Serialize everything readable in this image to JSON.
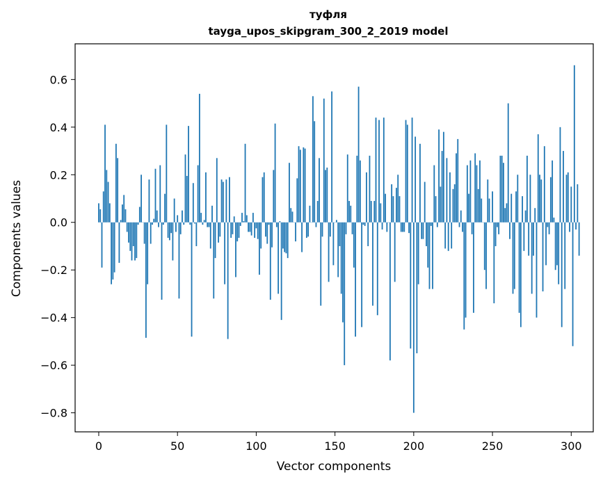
{
  "chart_data": {
    "type": "bar",
    "title_line1": "туфля",
    "title_line2": "tayga_upos_skipgram_300_2_2019 model",
    "xlabel": "Vector components",
    "ylabel": "Components values",
    "xlim": [
      -15,
      314
    ],
    "ylim": [
      -0.88,
      0.75
    ],
    "xticks": [
      0,
      50,
      100,
      150,
      200,
      250,
      300
    ],
    "xtick_labels": [
      "0",
      "50",
      "100",
      "150",
      "200",
      "250",
      "300"
    ],
    "yticks": [
      -0.8,
      -0.6,
      -0.4,
      -0.2,
      0.0,
      0.2,
      0.4,
      0.6
    ],
    "ytick_labels": [
      "−0.8",
      "−0.6",
      "−0.4",
      "−0.2",
      "0.0",
      "0.2",
      "0.4",
      "0.6"
    ],
    "bar_color": "#1f77b4",
    "bar_width": 0.8,
    "series": [
      {
        "name": "туфля",
        "values": [
          0.08,
          0.055,
          -0.19,
          0.13,
          0.41,
          0.22,
          0.17,
          0.08,
          -0.26,
          -0.24,
          -0.21,
          0.33,
          0.27,
          -0.17,
          0.01,
          0.075,
          0.115,
          0.055,
          -0.04,
          -0.085,
          -0.12,
          -0.16,
          -0.1,
          -0.16,
          -0.15,
          -0.01,
          0.065,
          0.2,
          0.0,
          -0.09,
          -0.485,
          -0.26,
          0.18,
          -0.09,
          -0.01,
          0.015,
          0.225,
          0.05,
          -0.02,
          0.24,
          -0.325,
          -0.01,
          0.12,
          0.41,
          -0.065,
          -0.075,
          -0.045,
          -0.16,
          0.1,
          -0.04,
          0.03,
          -0.32,
          -0.05,
          0.05,
          -0.01,
          0.285,
          0.195,
          0.405,
          -0.01,
          -0.48,
          0.165,
          -0.005,
          -0.1,
          0.24,
          0.54,
          0.04,
          -0.01,
          0.01,
          0.21,
          -0.02,
          -0.02,
          -0.11,
          0.07,
          -0.32,
          -0.15,
          0.27,
          -0.085,
          -0.06,
          0.18,
          0.17,
          -0.26,
          0.18,
          -0.49,
          0.19,
          -0.065,
          -0.05,
          0.025,
          -0.23,
          -0.08,
          -0.065,
          -0.015,
          0.04,
          0.005,
          0.33,
          0.03,
          -0.04,
          -0.04,
          -0.055,
          0.04,
          -0.065,
          -0.025,
          -0.07,
          -0.22,
          -0.11,
          0.19,
          0.21,
          -0.06,
          -0.09,
          -0.01,
          -0.325,
          -0.105,
          0.22,
          0.415,
          -0.02,
          -0.3,
          0.005,
          -0.41,
          -0.11,
          -0.125,
          -0.13,
          -0.15,
          0.25,
          0.06,
          0.045,
          0.0,
          -0.08,
          0.185,
          0.32,
          0.305,
          -0.125,
          0.315,
          0.31,
          -0.065,
          -0.06,
          0.07,
          0.0,
          0.53,
          0.425,
          -0.02,
          0.09,
          0.27,
          -0.35,
          -0.06,
          0.52,
          0.22,
          0.23,
          -0.25,
          -0.06,
          0.55,
          -0.18,
          0.0,
          0.01,
          -0.23,
          -0.1,
          -0.3,
          -0.42,
          -0.6,
          -0.05,
          0.285,
          0.09,
          0.07,
          -0.05,
          -0.19,
          -0.48,
          0.28,
          0.57,
          0.26,
          -0.44,
          -0.01,
          -0.015,
          0.21,
          -0.1,
          0.28,
          0.09,
          -0.35,
          0.09,
          0.44,
          -0.39,
          0.43,
          0.08,
          -0.03,
          0.44,
          0.12,
          -0.04,
          0.0,
          -0.58,
          0.16,
          0.11,
          -0.25,
          0.145,
          0.2,
          0.11,
          -0.04,
          -0.04,
          -0.04,
          0.43,
          0.41,
          -0.045,
          -0.53,
          0.44,
          -0.8,
          0.36,
          -0.55,
          -0.26,
          0.33,
          -0.07,
          -0.07,
          0.17,
          -0.1,
          -0.19,
          -0.28,
          -0.015,
          -0.28,
          0.24,
          0.11,
          -0.02,
          0.39,
          0.15,
          0.3,
          0.38,
          -0.11,
          0.27,
          -0.12,
          0.21,
          -0.11,
          0.14,
          0.16,
          0.29,
          0.35,
          -0.02,
          0.05,
          -0.04,
          -0.45,
          -0.4,
          0.24,
          0.12,
          0.26,
          -0.05,
          -0.38,
          0.29,
          0.24,
          0.14,
          0.26,
          0.1,
          0.0,
          -0.2,
          -0.28,
          0.18,
          0.1,
          0.0,
          0.13,
          -0.34,
          -0.1,
          -0.02,
          -0.05,
          0.28,
          0.28,
          0.25,
          0.06,
          0.08,
          0.5,
          -0.07,
          0.12,
          -0.3,
          -0.28,
          0.13,
          0.2,
          -0.38,
          -0.44,
          0.11,
          -0.12,
          0.05,
          0.28,
          -0.14,
          0.2,
          -0.3,
          -0.14,
          0.06,
          -0.4,
          0.37,
          0.2,
          0.18,
          -0.29,
          0.32,
          -0.18,
          -0.02,
          -0.05,
          0.19,
          0.26,
          0.02,
          -0.2,
          -0.18,
          -0.26,
          0.4,
          -0.44,
          0.3,
          -0.28,
          0.2,
          0.21,
          -0.04,
          0.15,
          -0.52,
          0.66,
          -0.03,
          0.16,
          -0.14
        ]
      }
    ]
  }
}
